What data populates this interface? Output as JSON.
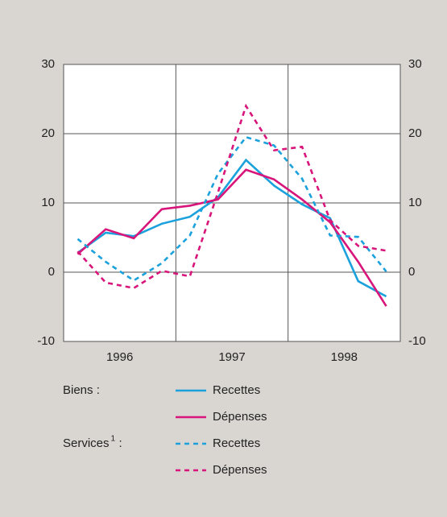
{
  "chart_data": {
    "type": "line",
    "x": [
      1996.125,
      1996.375,
      1996.625,
      1996.875,
      1997.125,
      1997.375,
      1997.625,
      1997.875,
      1998.125,
      1998.375,
      1998.625,
      1998.875
    ],
    "xlim": [
      1996,
      1999
    ],
    "xticks": [
      {
        "value": 1996.5,
        "label": "1996"
      },
      {
        "value": 1997.5,
        "label": "1997"
      },
      {
        "value": 1998.5,
        "label": "1998"
      }
    ],
    "xgrid": [
      1997,
      1998
    ],
    "ylim": [
      -10,
      30
    ],
    "yticks": [
      -10,
      0,
      10,
      20,
      30
    ],
    "y2lim": [
      -10,
      30
    ],
    "y2ticks": [
      -10,
      0,
      10,
      20,
      30
    ],
    "grid": true,
    "legend_groups": [
      {
        "label": "Biens :"
      },
      {
        "label": "Services",
        "note": "1",
        "suffix": ":"
      }
    ],
    "series": [
      {
        "name": "Recettes",
        "group": 0,
        "color": "#1ba1dc",
        "dash": "solid",
        "values": [
          2.8,
          5.7,
          5.2,
          7.0,
          8.0,
          10.8,
          16.2,
          12.5,
          9.8,
          7.8,
          -1.3,
          -3.5
        ]
      },
      {
        "name": "Dépenses",
        "group": 0,
        "color": "#d8157a",
        "dash": "solid",
        "values": [
          2.6,
          6.2,
          4.9,
          9.1,
          9.6,
          10.5,
          14.8,
          13.4,
          10.5,
          7.2,
          1.5,
          -4.9
        ]
      },
      {
        "name": "Recettes",
        "group": 1,
        "color": "#1ba1dc",
        "dash": "dashed",
        "values": [
          4.8,
          1.5,
          -1.2,
          1.3,
          5.3,
          14.2,
          19.5,
          18.3,
          13.5,
          5.3,
          5.1,
          0.1
        ]
      },
      {
        "name": "Dépenses",
        "group": 1,
        "color": "#d8157a",
        "dash": "dashed",
        "values": [
          3.0,
          -1.5,
          -2.3,
          0.2,
          -0.6,
          11.5,
          24.0,
          17.6,
          18.1,
          7.5,
          3.8,
          3.1
        ]
      }
    ]
  }
}
